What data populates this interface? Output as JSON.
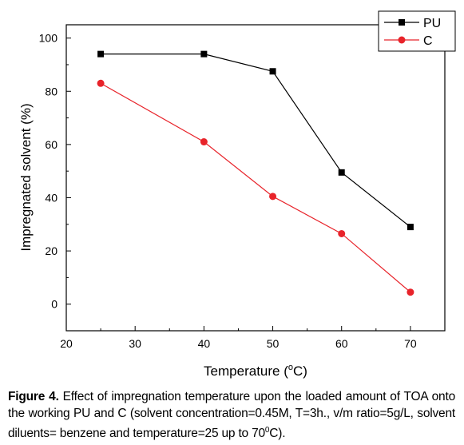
{
  "chart_data": {
    "type": "line",
    "xlabel": "Temperature (",
    "xlabel_sup": "o",
    "xlabel_end": "C)",
    "ylabel": "Impregnated solvent (%)",
    "xlim": [
      20,
      75
    ],
    "ylim": [
      -10,
      105
    ],
    "xticks": [
      "20",
      "30",
      "40",
      "50",
      "60",
      "70"
    ],
    "yticks": [
      "0",
      "20",
      "40",
      "60",
      "80",
      "100"
    ],
    "legend_position": "top-right",
    "series": [
      {
        "name": "PU",
        "marker": "square",
        "color": "#000000",
        "x": [
          25,
          40,
          50,
          60,
          70
        ],
        "y": [
          94,
          94,
          87.5,
          49.5,
          29
        ]
      },
      {
        "name": "C",
        "marker": "circle",
        "color": "#e8232a",
        "x": [
          25,
          40,
          50,
          60,
          70
        ],
        "y": [
          83,
          61,
          40.5,
          26.5,
          4.5
        ]
      }
    ]
  },
  "caption": {
    "label": "Figure 4.",
    "text_part1": " Effect of impregnation temperature upon the loaded amount of TOA onto the working PU and C (solvent concentration=0.45M, T=3h., v/m ratio=5g/L, solvent diluents= benzene and temperature=25 up to 70",
    "sup": "0",
    "text_part2": "C)."
  }
}
